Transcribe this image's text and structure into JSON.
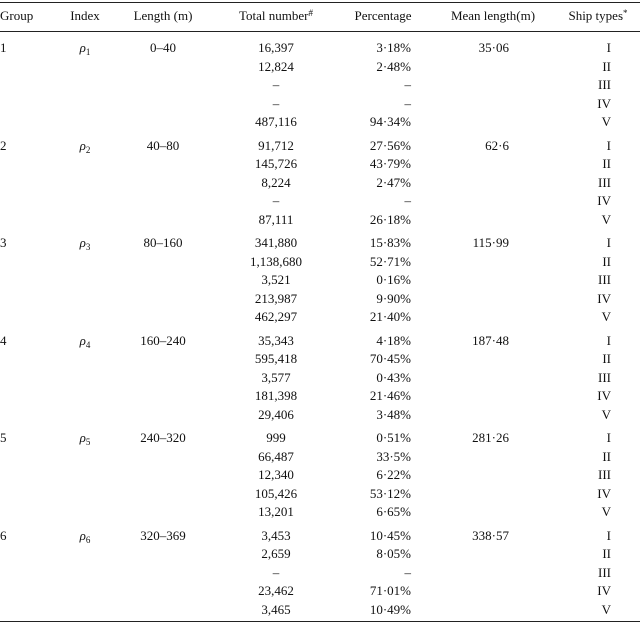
{
  "table": {
    "header": [
      "Group",
      "Index",
      "Length (m)",
      {
        "text": "Total number",
        "sup": "#"
      },
      "Percentage",
      "Mean length(m)",
      {
        "text": "Ship types",
        "sup": "*"
      }
    ],
    "groups": [
      {
        "group": "1",
        "index": {
          "symbol": "ρ",
          "sub": "1"
        },
        "length": "0–40",
        "mean": "35·06",
        "rows": [
          [
            "16,397",
            "3·18%",
            "I"
          ],
          [
            "12,824",
            "2·48%",
            "II"
          ],
          [
            "–",
            "–",
            "III"
          ],
          [
            "–",
            "–",
            "IV"
          ],
          [
            "487,116",
            "94·34%",
            "V"
          ]
        ]
      },
      {
        "group": "2",
        "index": {
          "symbol": "ρ",
          "sub": "2"
        },
        "length": "40–80",
        "mean": "62·6",
        "rows": [
          [
            "91,712",
            "27·56%",
            "I"
          ],
          [
            "145,726",
            "43·79%",
            "II"
          ],
          [
            "8,224",
            "2·47%",
            "III"
          ],
          [
            "–",
            "–",
            "IV"
          ],
          [
            "87,111",
            "26·18%",
            "V"
          ]
        ]
      },
      {
        "group": "3",
        "index": {
          "symbol": "ρ",
          "sub": "3"
        },
        "length": "80–160",
        "mean": "115·99",
        "rows": [
          [
            "341,880",
            "15·83%",
            "I"
          ],
          [
            "1,138,680",
            "52·71%",
            "II"
          ],
          [
            "3,521",
            "0·16%",
            "III"
          ],
          [
            "213,987",
            "9·90%",
            "IV"
          ],
          [
            "462,297",
            "21·40%",
            "V"
          ]
        ]
      },
      {
        "group": "4",
        "index": {
          "symbol": "ρ",
          "sub": "4"
        },
        "length": "160–240",
        "mean": "187·48",
        "rows": [
          [
            "35,343",
            "4·18%",
            "I"
          ],
          [
            "595,418",
            "70·45%",
            "II"
          ],
          [
            "3,577",
            "0·43%",
            "III"
          ],
          [
            "181,398",
            "21·46%",
            "IV"
          ],
          [
            "29,406",
            "3·48%",
            "V"
          ]
        ]
      },
      {
        "group": "5",
        "index": {
          "symbol": "ρ",
          "sub": "5"
        },
        "length": "240–320",
        "mean": "281·26",
        "rows": [
          [
            "999",
            "0·51%",
            "I"
          ],
          [
            "66,487",
            "33·5%",
            "II"
          ],
          [
            "12,340",
            "6·22%",
            "III"
          ],
          [
            "105,426",
            "53·12%",
            "IV"
          ],
          [
            "13,201",
            "6·65%",
            "V"
          ]
        ]
      },
      {
        "group": "6",
        "index": {
          "symbol": "ρ",
          "sub": "6"
        },
        "length": "320–369",
        "mean": "338·57",
        "rows": [
          [
            "3,453",
            "10·45%",
            "I"
          ],
          [
            "2,659",
            "8·05%",
            "II"
          ],
          [
            "–",
            "–",
            "III"
          ],
          [
            "23,462",
            "71·01%",
            "IV"
          ],
          [
            "3,465",
            "10·49%",
            "V"
          ]
        ]
      }
    ]
  }
}
